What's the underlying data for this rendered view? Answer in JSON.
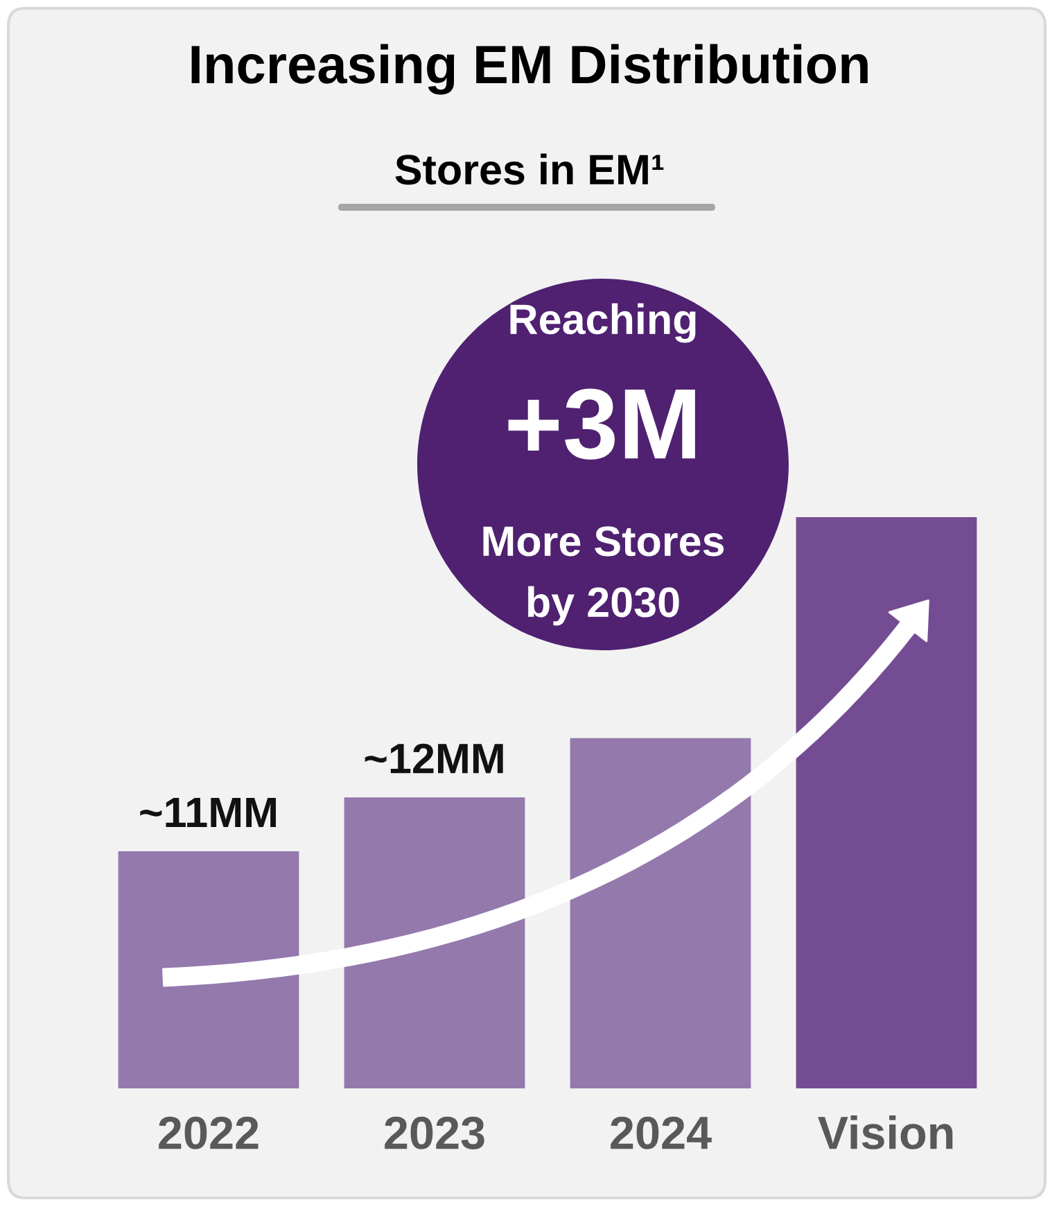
{
  "chart_data": {
    "type": "bar",
    "title": "Increasing EM Distribution",
    "subtitle": "Stores in EM¹",
    "categories": [
      "2022",
      "2023",
      "2024",
      "Vision"
    ],
    "values": [
      11,
      12,
      13.1,
      17.2
    ],
    "colors": [
      "#9479ad",
      "#9479ad",
      "#9479ad",
      "#744c93"
    ],
    "ylim": [
      6.6,
      17.2
    ],
    "value_labels": [
      "~11MM",
      "~12MM",
      null,
      null
    ],
    "annotations": [
      "Reaching",
      "+3M",
      "More Stores",
      "by 2030"
    ]
  }
}
